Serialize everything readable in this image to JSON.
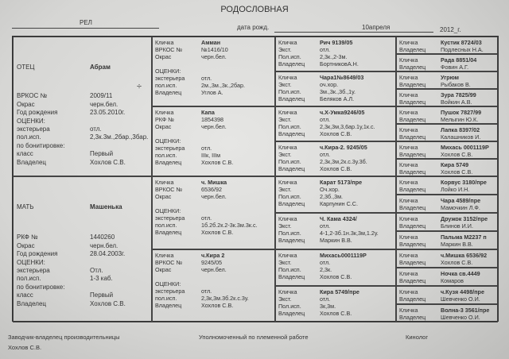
{
  "title": "РОДОСЛОВНАЯ",
  "header": {
    "breed": "РЕЛ",
    "birth_label": "дата рожд.",
    "birth_date": "10апреля",
    "year": "2012_г."
  },
  "labels": {
    "name": "Кличка",
    "vrkos": "ВРКОС №",
    "rkf": "РКФ №",
    "color": "Окрас",
    "scores": "ОЦЕНКИ:",
    "exterior": "экстерьера",
    "work": "пол.исп.",
    "owner": "Владелец",
    "ext_short": "Экст.",
    "work_short": "Пол.исп.",
    "birth_year": "Год рождения",
    "bonit": "по бонитировке:",
    "class": "класс"
  },
  "sire": {
    "role": "ОТЕЦ",
    "name": "Абрам",
    "reg": "2009/11",
    "color": "черн.бел.",
    "born": "23.05.2010г.",
    "exterior": "отл.",
    "work": "2,3к.3м.,2бар.,3бар.",
    "class": "Первый",
    "owner": "Хохлов С.В.",
    "sex_icon": "÷"
  },
  "dam": {
    "role": "МАТЬ",
    "name": "Машенька",
    "reg": "1440260",
    "color": "черн.бел.",
    "born": "28.04.2003г.",
    "exterior": "Отл.",
    "work": "1-3 каб.",
    "class": "Первый",
    "owner": "Хохлов С.В."
  },
  "gen2": [
    {
      "name": "Амман",
      "reg_label": "ВРКОС №",
      "reg": "№1416/10",
      "color": "черн.бел.",
      "exterior": "отл.",
      "work": "2м.,3м.,3к.,2бар.",
      "owner": "Углов А."
    },
    {
      "name": "Капа",
      "reg_label": "РКФ №",
      "reg": "1854398",
      "color": "черн.бел.",
      "exterior": "отл.",
      "work": "IIIк, IIIм",
      "owner": "Хохлов С.В."
    },
    {
      "name": "ч. Мишка",
      "reg_label": "ВРКОС №",
      "reg": "6536/92",
      "color": "черн.бел.",
      "exterior": "отл.",
      "work": "1б.2б.2к.2-3к.3м.3к.с.",
      "owner": "Хохлов С.В."
    },
    {
      "name": "ч.Кира 2",
      "reg_label": "ВРКОС №",
      "reg": "9245/05",
      "color": "черн.бел.",
      "exterior": "отл.",
      "work": "2,3к,3м.3б.2к.с.3у.",
      "owner": "Хохлов С.В."
    }
  ],
  "gen3": [
    {
      "name": "Рич 9139/05",
      "ext": "отл.",
      "work": "2,3к.,2-3м.",
      "owner": "БортниковА.Н."
    },
    {
      "name": "Чара1№8649/03",
      "ext": "оч.хор.",
      "work": "3м.,3к.,3б.,1у.",
      "owner": "Беляков А.Л."
    },
    {
      "name": "ч.Х-Умка9246/05",
      "ext": "отл.",
      "work": "2,3к,3м,3,6ар.1у,1к.с.",
      "owner": "Хохлов С.В."
    },
    {
      "name": "ч.Кира-2. 9245/05",
      "ext": "отл.",
      "work": "2,3к,3м,2к.с.3у.3б.",
      "owner": "Хохлов С.В."
    },
    {
      "name": "Карат 5173/пре",
      "ext": "Оч.хор.",
      "work": "2,3б.,3м.",
      "owner": "Карпунин С.С."
    },
    {
      "name": "Ч. Кама 4324/",
      "ext": "отл.",
      "work": "4-1,2-3б.1н.3к,3м,1.2у.",
      "owner": "Маркин В.В."
    },
    {
      "name": "Михась0001119Р",
      "ext": "отл.",
      "work": "2,3к.",
      "owner": "Хохлов С.В."
    },
    {
      "name": "Кира 5749/пре",
      "ext": "отл.",
      "work": "3к,3м.",
      "owner": "Хохлов С.В."
    }
  ],
  "gen4": [
    {
      "name": "Кустик 8724/03",
      "owner": "Подлесных Н.А."
    },
    {
      "name": "Рада 8851/04",
      "owner": "Фовин А.Г."
    },
    {
      "name": "Угрюм",
      "owner": "Рыбаков В."
    },
    {
      "name": "Зура 7825/99",
      "owner": "Войкин А.В."
    },
    {
      "name": "Пушок 7827/99",
      "owner": "Мелыгин Ю.К."
    },
    {
      "name": "Лапка 8397/02",
      "owner": "Калашников И."
    },
    {
      "name": "Михась 0001119Р",
      "owner": "Хохлов С.В."
    },
    {
      "name": "Кира 5749",
      "owner": "Хохлов С.В."
    },
    {
      "name": "Корвус 3180/пре",
      "owner": "Лойко И.Н."
    },
    {
      "name": "Чара 4589/пре",
      "owner": "Мамочкин Л.Ф."
    },
    {
      "name": "Дружок 3152/пре",
      "owner": "Блинов И.И."
    },
    {
      "name": "Пальма М2237 п",
      "owner": "Маркин В.В."
    },
    {
      "name": "ч.Мишка 6536/92",
      "owner": "Хохлов С.В."
    },
    {
      "name": "Ночка св.4449",
      "owner": "Комаров"
    },
    {
      "name": "ч.Кузя 4498/пре",
      "owner": "Шевченко О.И."
    },
    {
      "name": "Волна-3 3561/пре",
      "owner": "Шевченко О.И."
    }
  ],
  "footer": {
    "breeder_label": "Заводчик-владелец производительницы",
    "breeder": "Хохлов С.В.",
    "authorized": "Уполномоченный по племенной работе",
    "cynologist": "Кинолог"
  }
}
